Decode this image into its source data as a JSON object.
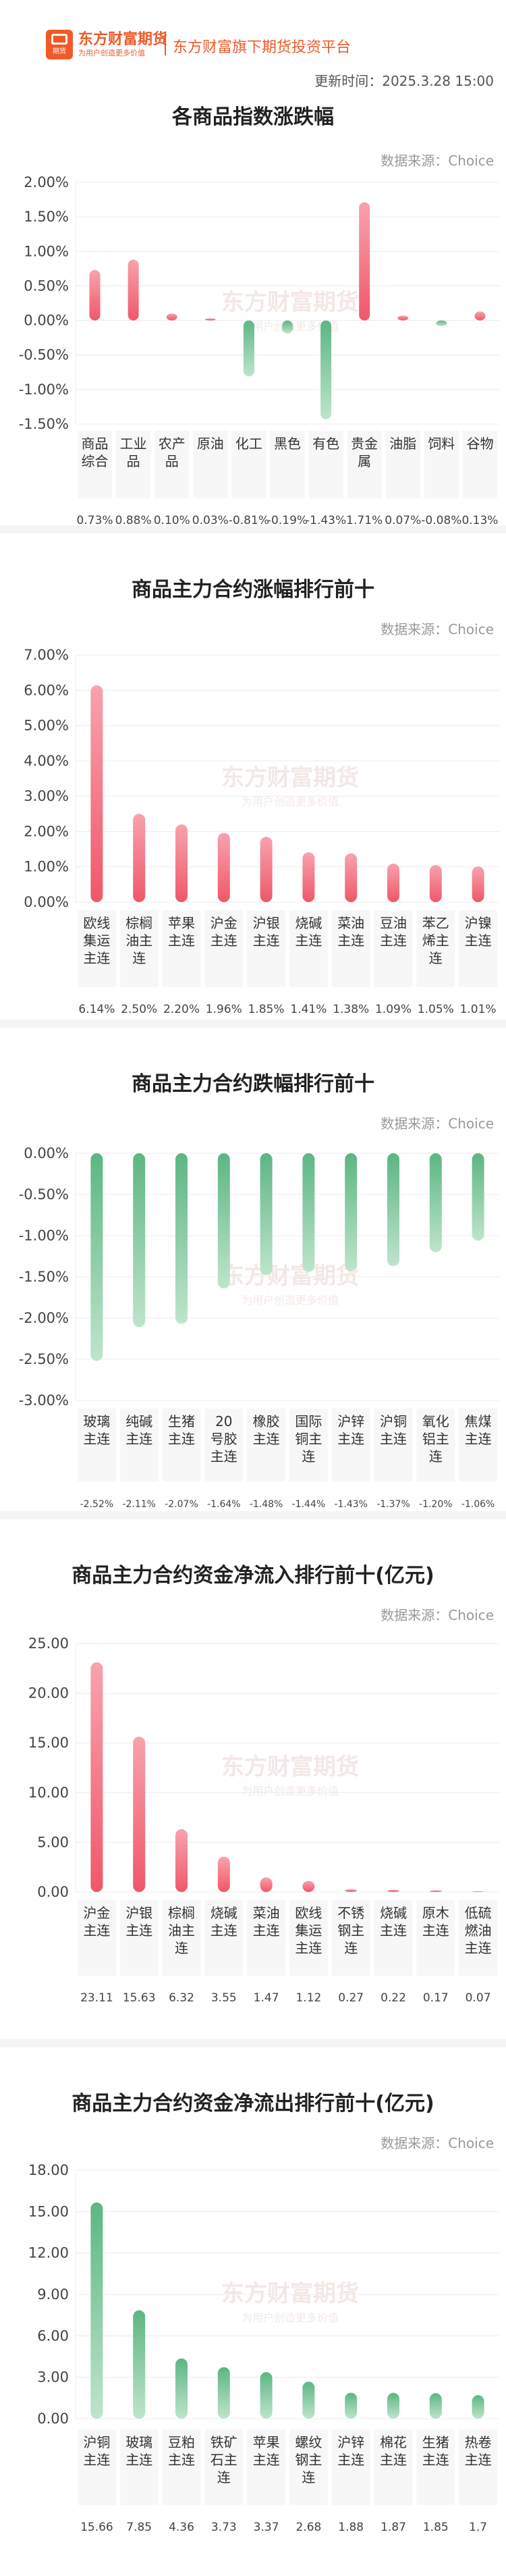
{
  "header": {
    "logo_name": "东方财富期货",
    "logo_tagline": "为用户创造更多价值",
    "logo_badge": "期货",
    "platform": "东方财富旗下期货投资平台",
    "updated_label": "更新时间：",
    "updated_time": "2025.3.28 15:00"
  },
  "source_label": "数据来源：Choice",
  "watermark": "东方财富期货",
  "watermark_sub": "为用户创造更多价值",
  "colors": {
    "red": "#f0576a",
    "green": "#5cb682",
    "accent": "#f05a28"
  },
  "chart_data": [
    {
      "type": "bar",
      "title": "各商品指数涨跌幅",
      "categories": [
        "商品综合",
        "工业品",
        "农产品",
        "原油",
        "化工",
        "黑色",
        "有色",
        "贵金属",
        "油脂",
        "饲料",
        "谷物"
      ],
      "values": [
        0.73,
        0.88,
        0.1,
        0.03,
        -0.81,
        -0.19,
        -1.43,
        1.71,
        0.07,
        -0.08,
        0.13
      ],
      "value_labels": [
        "0.73%",
        "0.88%",
        "0.10%",
        "0.03%",
        "-0.81%",
        "-0.19%",
        "-1.43%",
        "1.71%",
        "0.07%",
        "-0.08%",
        "0.13%"
      ],
      "yticks": [
        "2.00%",
        "1.50%",
        "1.00%",
        "0.50%",
        "0.00%",
        "-0.50%",
        "-1.00%",
        "-1.50%"
      ],
      "ylim": [
        -1.5,
        2.0
      ]
    },
    {
      "type": "bar",
      "title": "商品主力合约涨幅排行前十",
      "categories": [
        "欧线集运主连",
        "棕榈油主连",
        "苹果主连",
        "沪金主连",
        "沪银主连",
        "烧碱主连",
        "菜油主连",
        "豆油主连",
        "苯乙烯主连",
        "沪镍主连"
      ],
      "values": [
        6.14,
        2.5,
        2.2,
        1.96,
        1.85,
        1.41,
        1.38,
        1.09,
        1.05,
        1.01
      ],
      "value_labels": [
        "6.14%",
        "2.50%",
        "2.20%",
        "1.96%",
        "1.85%",
        "1.41%",
        "1.38%",
        "1.09%",
        "1.05%",
        "1.01%"
      ],
      "yticks": [
        "7.00%",
        "6.00%",
        "5.00%",
        "4.00%",
        "3.00%",
        "2.00%",
        "1.00%",
        "0.00%"
      ],
      "ylim": [
        0,
        7
      ]
    },
    {
      "type": "bar",
      "title": "商品主力合约跌幅排行前十",
      "categories": [
        "玻璃主连",
        "纯碱主连",
        "生猪主连",
        "20号胶主连",
        "橡胶主连",
        "国际铜主连",
        "沪锌主连",
        "沪铜主连",
        "氧化铝主连",
        "焦煤主连"
      ],
      "values": [
        -2.52,
        -2.11,
        -2.07,
        -1.64,
        -1.48,
        -1.44,
        -1.43,
        -1.37,
        -1.2,
        -1.06
      ],
      "value_labels": [
        "-2.52%",
        "-2.11%",
        "-2.07%",
        "-1.64%",
        "-1.48%",
        "-1.44%",
        "-1.43%",
        "-1.37%",
        "-1.20%",
        "-1.06%"
      ],
      "yticks": [
        "0.00%",
        "-0.50%",
        "-1.00%",
        "-1.50%",
        "-2.00%",
        "-2.50%",
        "-3.00%"
      ],
      "ylim": [
        -3,
        0
      ]
    },
    {
      "type": "bar",
      "title": "商品主力合约资金净流入排行前十(亿元)",
      "categories": [
        "沪金主连",
        "沪银主连",
        "棕榈油主连",
        "烧碱主连",
        "菜油主连",
        "欧线集运主连",
        "不锈钢主连",
        "烧碱主连",
        "原木主连",
        "低硫燃油主连"
      ],
      "values": [
        23.11,
        15.63,
        6.32,
        3.55,
        1.47,
        1.12,
        0.27,
        0.22,
        0.17,
        0.07
      ],
      "value_labels": [
        "23.11",
        "15.63",
        "6.32",
        "3.55",
        "1.47",
        "1.12",
        "0.27",
        "0.22",
        "0.17",
        "0.07"
      ],
      "yticks": [
        "25.00",
        "20.00",
        "15.00",
        "10.00",
        "5.00",
        "0.00"
      ],
      "ylim": [
        0,
        25
      ]
    },
    {
      "type": "bar",
      "title": "商品主力合约资金净流出排行前十(亿元)",
      "categories": [
        "沪铜主连",
        "玻璃主连",
        "豆粕主连",
        "铁矿石主连",
        "苹果主连",
        "螺纹钢主连",
        "沪锌主连",
        "棉花主连",
        "生猪主连",
        "热卷主连"
      ],
      "values": [
        15.66,
        7.85,
        4.36,
        3.73,
        3.37,
        2.68,
        1.88,
        1.87,
        1.85,
        1.7
      ],
      "value_labels": [
        "15.66",
        "7.85",
        "4.36",
        "3.73",
        "3.37",
        "2.68",
        "1.88",
        "1.87",
        "1.85",
        "1.7"
      ],
      "yticks": [
        "18.00",
        "15.00",
        "12.00",
        "9.00",
        "6.00",
        "3.00",
        "0.00"
      ],
      "ylim": [
        0,
        18
      ]
    }
  ]
}
